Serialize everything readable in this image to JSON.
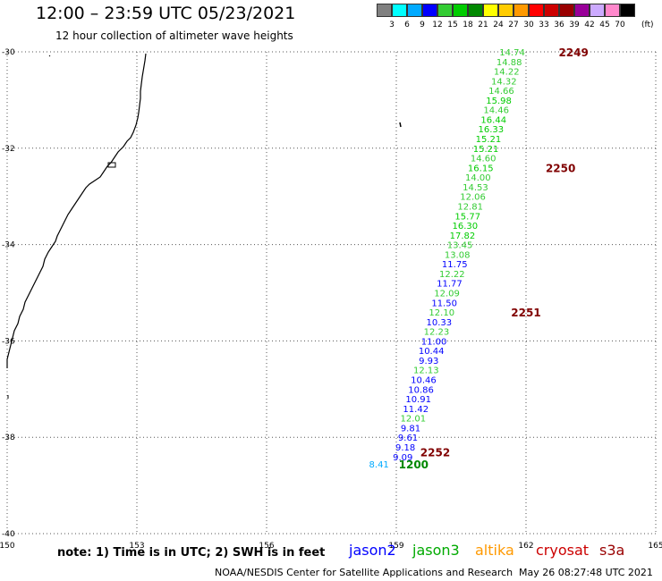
{
  "title": "12:00 – 23:59 UTC 05/23/2021",
  "subtitle": "12 hour collection of altimeter wave heights",
  "colorbar": {
    "unit": "(ft)",
    "labels": [
      "3",
      "6",
      "9",
      "12",
      "15",
      "18",
      "21",
      "24",
      "27",
      "30",
      "33",
      "36",
      "39",
      "42",
      "45",
      "70"
    ],
    "colors": [
      "#808080",
      "#00ffff",
      "#00aaff",
      "#0000ff",
      "#33cc33",
      "#00cc00",
      "#008800",
      "#ffff00",
      "#ffcc00",
      "#ff9900",
      "#ff0000",
      "#cc0000",
      "#990000",
      "#990099",
      "#ccaaff",
      "#ff88cc",
      "#000000"
    ]
  },
  "map": {
    "lon_range": [
      150,
      165
    ],
    "lat_range": [
      -40,
      -30
    ],
    "lon_ticks": [
      "150",
      "153",
      "156",
      "159",
      "162",
      "165"
    ],
    "lat_ticks": [
      "-30",
      "-32",
      "-34",
      "-36",
      "-38",
      "-40"
    ],
    "grid": "dotted"
  },
  "chart_data": {
    "type": "scatter",
    "description_units": "significant wave height (ft) along altimeter track",
    "xlabel": "",
    "ylabel": "",
    "xlim": [
      150,
      165
    ],
    "ylim": [
      -40,
      -30
    ],
    "points": [
      {
        "lon": 161.68,
        "lat": -30.0,
        "label": "14.74",
        "color": "#33cc33"
      },
      {
        "lon": 161.61,
        "lat": -30.2,
        "label": "14.88",
        "color": "#33cc33"
      },
      {
        "lon": 161.55,
        "lat": -30.4,
        "label": "14.22",
        "color": "#33cc33"
      },
      {
        "lon": 161.49,
        "lat": -30.6,
        "label": "14.32",
        "color": "#33cc33"
      },
      {
        "lon": 161.43,
        "lat": -30.8,
        "label": "14.66",
        "color": "#33cc33"
      },
      {
        "lon": 161.37,
        "lat": -31.0,
        "label": "15.98",
        "color": "#00cc00"
      },
      {
        "lon": 161.31,
        "lat": -31.2,
        "label": "14.46",
        "color": "#33cc33"
      },
      {
        "lon": 161.25,
        "lat": -31.4,
        "label": "16.44",
        "color": "#00cc00"
      },
      {
        "lon": 161.19,
        "lat": -31.6,
        "label": "16.33",
        "color": "#00cc00"
      },
      {
        "lon": 161.13,
        "lat": -31.8,
        "label": "15.21",
        "color": "#00cc00"
      },
      {
        "lon": 161.07,
        "lat": -32.0,
        "label": "15.21",
        "color": "#00cc00"
      },
      {
        "lon": 161.01,
        "lat": -32.2,
        "label": "14.60",
        "color": "#33cc33"
      },
      {
        "lon": 160.95,
        "lat": -32.4,
        "label": "16.15",
        "color": "#00cc00"
      },
      {
        "lon": 160.89,
        "lat": -32.6,
        "label": "14.00",
        "color": "#33cc33"
      },
      {
        "lon": 160.83,
        "lat": -32.8,
        "label": "14.53",
        "color": "#33cc33"
      },
      {
        "lon": 160.77,
        "lat": -33.0,
        "label": "12.06",
        "color": "#33cc33"
      },
      {
        "lon": 160.71,
        "lat": -33.2,
        "label": "12.81",
        "color": "#33cc33"
      },
      {
        "lon": 160.65,
        "lat": -33.4,
        "label": "15.77",
        "color": "#00cc00"
      },
      {
        "lon": 160.59,
        "lat": -33.6,
        "label": "16.30",
        "color": "#00cc00"
      },
      {
        "lon": 160.53,
        "lat": -33.8,
        "label": "17.82",
        "color": "#00cc00"
      },
      {
        "lon": 160.47,
        "lat": -34.0,
        "label": "13.45",
        "color": "#33cc33"
      },
      {
        "lon": 160.41,
        "lat": -34.2,
        "label": "13.08",
        "color": "#33cc33"
      },
      {
        "lon": 160.35,
        "lat": -34.4,
        "label": "11.75",
        "color": "#0000ff"
      },
      {
        "lon": 160.29,
        "lat": -34.6,
        "label": "12.22",
        "color": "#33cc33"
      },
      {
        "lon": 160.23,
        "lat": -34.8,
        "label": "11.77",
        "color": "#0000ff"
      },
      {
        "lon": 160.17,
        "lat": -35.0,
        "label": "12.09",
        "color": "#33cc33"
      },
      {
        "lon": 160.11,
        "lat": -35.2,
        "label": "11.50",
        "color": "#0000ff"
      },
      {
        "lon": 160.05,
        "lat": -35.4,
        "label": "12.10",
        "color": "#33cc33"
      },
      {
        "lon": 159.99,
        "lat": -35.6,
        "label": "10.33",
        "color": "#0000ff"
      },
      {
        "lon": 159.93,
        "lat": -35.8,
        "label": "12.23",
        "color": "#33cc33"
      },
      {
        "lon": 159.87,
        "lat": -36.0,
        "label": "11.00",
        "color": "#0000ff"
      },
      {
        "lon": 159.81,
        "lat": -36.2,
        "label": "10.44",
        "color": "#0000ff"
      },
      {
        "lon": 159.75,
        "lat": -36.4,
        "label": "9.93",
        "color": "#0000ff"
      },
      {
        "lon": 159.69,
        "lat": -36.6,
        "label": "12.13",
        "color": "#33cc33"
      },
      {
        "lon": 159.63,
        "lat": -36.8,
        "label": "10.46",
        "color": "#0000ff"
      },
      {
        "lon": 159.57,
        "lat": -37.0,
        "label": "10.86",
        "color": "#0000ff"
      },
      {
        "lon": 159.51,
        "lat": -37.2,
        "label": "10.91",
        "color": "#0000ff"
      },
      {
        "lon": 159.45,
        "lat": -37.4,
        "label": "11.42",
        "color": "#0000ff"
      },
      {
        "lon": 159.39,
        "lat": -37.6,
        "label": "12.01",
        "color": "#33cc33"
      },
      {
        "lon": 159.33,
        "lat": -37.8,
        "label": "9.81",
        "color": "#0000ff"
      },
      {
        "lon": 159.27,
        "lat": -38.0,
        "label": "9.61",
        "color": "#0000ff"
      },
      {
        "lon": 159.21,
        "lat": -38.2,
        "label": "9.18",
        "color": "#0000ff"
      },
      {
        "lon": 159.15,
        "lat": -38.4,
        "label": "9.09",
        "color": "#0000ff"
      },
      {
        "lon": 158.6,
        "lat": -38.55,
        "label": "8.41",
        "color": "#00aaff"
      }
    ],
    "time_labels": [
      {
        "lon": 163.1,
        "lat": -30.0,
        "label": "2249"
      },
      {
        "lon": 162.8,
        "lat": -32.4,
        "label": "2250"
      },
      {
        "lon": 162.0,
        "lat": -35.4,
        "label": "2251"
      },
      {
        "lon": 159.9,
        "lat": -38.3,
        "label": "2252"
      },
      {
        "lon": 159.4,
        "lat": -38.55,
        "label": "1200"
      }
    ]
  },
  "legend": {
    "note": "note: 1) Time is in UTC; 2) SWH is in feet",
    "missions": [
      {
        "name": "jason2",
        "color": "#0000ff"
      },
      {
        "name": "jason3",
        "color": "#00aa00"
      },
      {
        "name": "altika",
        "color": "#ff9900"
      },
      {
        "name": "cryosat",
        "color": "#cc0000"
      },
      {
        "name": "s3a",
        "color": "#990000"
      }
    ]
  },
  "footer": {
    "credit": "NOAA/NESDIS Center for Satellite Applications and Research",
    "generated": "May 26 08:27:48 UTC 2021"
  }
}
